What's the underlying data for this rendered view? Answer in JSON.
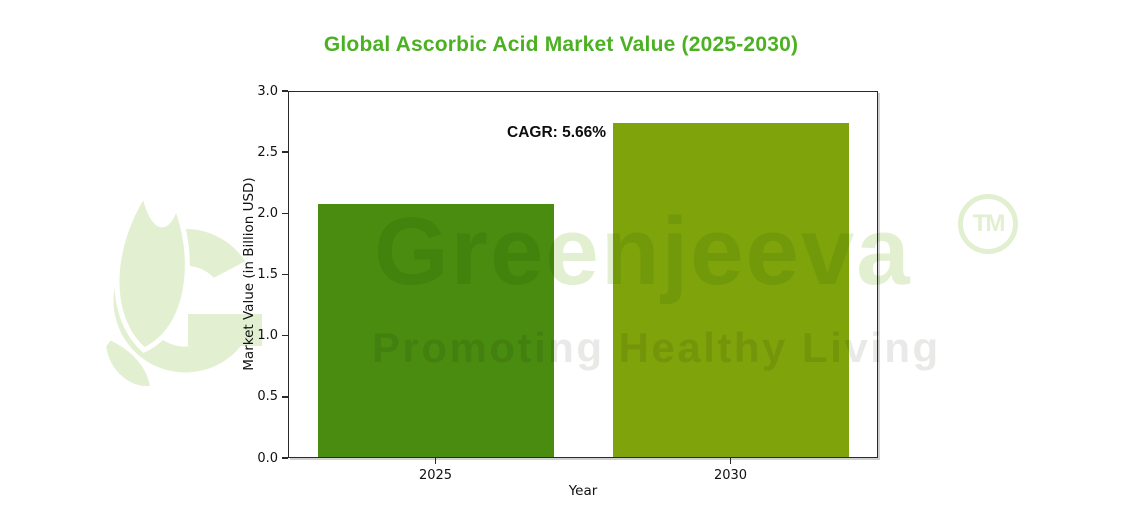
{
  "page": {
    "background": "#ffffff"
  },
  "chart_data": {
    "type": "bar",
    "title": "Global Ascorbic Acid Market Value (2025-2030)",
    "categories": [
      "2025",
      "2030"
    ],
    "values": [
      2.08,
      2.74
    ],
    "bar_colors": [
      "#4a8c10",
      "#7fa30b"
    ],
    "xlabel": "Year",
    "ylabel": "Market Value (in Billion USD)",
    "ylim": [
      0,
      3.0
    ],
    "yticks": [
      0.0,
      0.5,
      1.0,
      1.5,
      2.0,
      2.5,
      3.0
    ],
    "ytick_decimals": 1,
    "annotation": "CAGR: 5.66%",
    "grid": false,
    "legend": "none",
    "title_color": "#4cb122"
  },
  "watermark": {
    "brand": "Greenjeeva",
    "trademark": "TM",
    "tagline": "Promoting Healthy Living",
    "brand_color": "#8dc63f"
  }
}
